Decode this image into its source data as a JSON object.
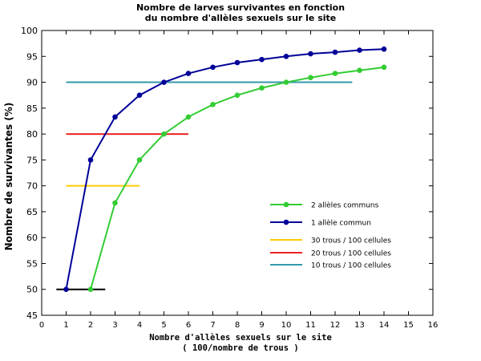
{
  "chart_data": {
    "type": "line",
    "title_line1": "Nombre de larves survivantes en fonction",
    "title_line2": "du nombre d'allèles sexuels sur le site",
    "xlabel_line1": "Nombre d'allèles sexuels sur le site",
    "xlabel_line2": "( 100/nombre de trous )",
    "ylabel": "Nombre de survivantes (%)",
    "xlim": [
      0,
      16
    ],
    "ylim": [
      45,
      100
    ],
    "x_ticks": [
      "0",
      "1",
      "2",
      "3",
      "4",
      "5",
      "6",
      "7",
      "8",
      "9",
      "10",
      "11",
      "12",
      "13",
      "14",
      "15",
      "16"
    ],
    "y_ticks": [
      "45",
      "50",
      "55",
      "60",
      "65",
      "70",
      "75",
      "80",
      "85",
      "90",
      "95",
      "100"
    ],
    "legend_position": "right",
    "series": [
      {
        "name": "2 allèles communs",
        "color": "#33cc33",
        "x": [
          2,
          3,
          4,
          5,
          6,
          7,
          8,
          9,
          10,
          11,
          12,
          13,
          14
        ],
        "values": [
          50,
          66.7,
          75,
          80,
          83.3,
          85.7,
          87.5,
          88.9,
          90,
          90.9,
          91.7,
          92.3,
          92.9
        ]
      },
      {
        "name": "1 allèle commun",
        "color": "#000099",
        "x": [
          1,
          2,
          3,
          4,
          5,
          6,
          7,
          8,
          9,
          10,
          11,
          12,
          13,
          14
        ],
        "values": [
          50,
          75,
          83.3,
          87.5,
          90,
          91.7,
          92.9,
          93.8,
          94.4,
          95,
          95.5,
          95.8,
          96.2,
          96.4
        ]
      }
    ],
    "reference_lines": [
      {
        "name": "30 trous / 100 cellules",
        "color": "#ffcc00",
        "y": 70,
        "x": [
          1,
          4
        ]
      },
      {
        "name": "20 trous / 100 cellules",
        "color": "#ee2222",
        "y": 80,
        "x": [
          1,
          6
        ]
      },
      {
        "name": "10 trous / 100 cellules",
        "color": "#3399aa",
        "y": 90,
        "x": [
          1,
          12.7
        ]
      },
      {
        "name": "",
        "color": "#000000",
        "y": 50,
        "x": [
          0.6,
          2.6
        ]
      }
    ]
  }
}
